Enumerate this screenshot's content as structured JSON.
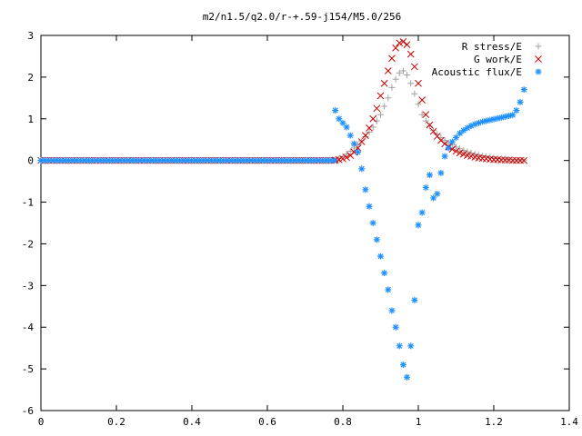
{
  "chart_data": {
    "type": "scatter",
    "title": "m2/n1.5/q2.0/r-+.59-j154/M5.0/256",
    "xlabel": "",
    "ylabel": "",
    "xlim": [
      0,
      1.4
    ],
    "ylim": [
      -6,
      3
    ],
    "xticks": [
      "0",
      "0.2",
      "0.4",
      "0.6",
      "0.8",
      "1",
      "1.2",
      "1.4"
    ],
    "yticks": [
      "3",
      "2",
      "1",
      "0",
      "-1",
      "-2",
      "-3",
      "-4",
      "-5",
      "-6"
    ],
    "grid": false,
    "legend_position": "top-right",
    "series": [
      {
        "name": "R stress/E",
        "marker": "plus",
        "color": "#a0a0a0",
        "x": [
          0.78,
          0.79,
          0.8,
          0.81,
          0.82,
          0.83,
          0.84,
          0.85,
          0.86,
          0.87,
          0.88,
          0.89,
          0.9,
          0.91,
          0.92,
          0.93,
          0.94,
          0.95,
          0.96,
          0.97,
          0.98,
          0.99,
          1.0,
          1.01,
          1.02,
          1.03,
          1.04,
          1.05,
          1.06,
          1.07,
          1.08,
          1.09,
          1.1,
          1.11,
          1.12,
          1.13,
          1.14,
          1.15,
          1.16,
          1.17,
          1.18,
          1.19,
          1.2,
          1.21,
          1.22,
          1.23,
          1.24,
          1.25,
          1.26,
          1.27,
          1.28
        ],
        "y": [
          0.02,
          0.05,
          0.1,
          0.15,
          0.22,
          0.3,
          0.38,
          0.47,
          0.57,
          0.68,
          0.8,
          0.95,
          1.1,
          1.3,
          1.5,
          1.75,
          1.95,
          2.1,
          2.15,
          2.05,
          1.85,
          1.6,
          1.35,
          1.1,
          0.95,
          0.82,
          0.72,
          0.63,
          0.55,
          0.48,
          0.42,
          0.37,
          0.32,
          0.28,
          0.24,
          0.21,
          0.18,
          0.15,
          0.13,
          0.11,
          0.09,
          0.08,
          0.06,
          0.05,
          0.04,
          0.03,
          0.02,
          0.02,
          0.01,
          0.01,
          0.01
        ]
      },
      {
        "name": "G work/E",
        "marker": "cross",
        "color": "#cc0000",
        "x": [
          0.78,
          0.79,
          0.8,
          0.81,
          0.82,
          0.83,
          0.84,
          0.85,
          0.86,
          0.87,
          0.88,
          0.89,
          0.9,
          0.91,
          0.92,
          0.93,
          0.94,
          0.95,
          0.96,
          0.97,
          0.98,
          0.99,
          1.0,
          1.01,
          1.02,
          1.03,
          1.04,
          1.05,
          1.06,
          1.07,
          1.08,
          1.09,
          1.1,
          1.11,
          1.12,
          1.13,
          1.14,
          1.15,
          1.16,
          1.17,
          1.18,
          1.19,
          1.2,
          1.21,
          1.22,
          1.23,
          1.24,
          1.25,
          1.26,
          1.27,
          1.28
        ],
        "y": [
          0.01,
          0.02,
          0.04,
          0.07,
          0.12,
          0.2,
          0.3,
          0.45,
          0.6,
          0.78,
          1.0,
          1.25,
          1.55,
          1.85,
          2.15,
          2.45,
          2.7,
          2.82,
          2.85,
          2.78,
          2.55,
          2.25,
          1.85,
          1.45,
          1.1,
          0.85,
          0.7,
          0.58,
          0.48,
          0.4,
          0.33,
          0.27,
          0.22,
          0.18,
          0.15,
          0.12,
          0.1,
          0.08,
          0.06,
          0.05,
          0.04,
          0.03,
          0.02,
          0.02,
          0.01,
          0.01,
          0.01,
          0.0,
          0.0,
          0.0,
          0.0
        ]
      },
      {
        "name": "Acoustic flux/E",
        "marker": "star",
        "color": "#1e90ff",
        "x": [
          0.78,
          0.79,
          0.8,
          0.81,
          0.82,
          0.83,
          0.84,
          0.85,
          0.86,
          0.87,
          0.88,
          0.89,
          0.9,
          0.91,
          0.92,
          0.93,
          0.94,
          0.95,
          0.96,
          0.97,
          0.98,
          0.99,
          1.0,
          1.01,
          1.02,
          1.03,
          1.04,
          1.05,
          1.06,
          1.07,
          1.08,
          1.09,
          1.1,
          1.11,
          1.12,
          1.13,
          1.14,
          1.15,
          1.16,
          1.17,
          1.18,
          1.19,
          1.2,
          1.21,
          1.22,
          1.23,
          1.24,
          1.25,
          1.26,
          1.27,
          1.28
        ],
        "y": [
          1.2,
          1.0,
          0.9,
          0.8,
          0.6,
          0.4,
          0.2,
          -0.2,
          -0.7,
          -1.1,
          -1.5,
          -1.9,
          -2.3,
          -2.7,
          -3.1,
          -3.6,
          -4.0,
          -4.45,
          -4.9,
          -5.2,
          -4.45,
          -3.35,
          -1.55,
          -1.25,
          -0.65,
          -0.35,
          -0.9,
          -0.8,
          -0.3,
          0.1,
          0.3,
          0.45,
          0.55,
          0.65,
          0.72,
          0.78,
          0.83,
          0.87,
          0.9,
          0.93,
          0.95,
          0.97,
          0.99,
          1.01,
          1.03,
          1.05,
          1.07,
          1.09,
          1.2,
          1.4,
          1.7
        ]
      }
    ]
  }
}
